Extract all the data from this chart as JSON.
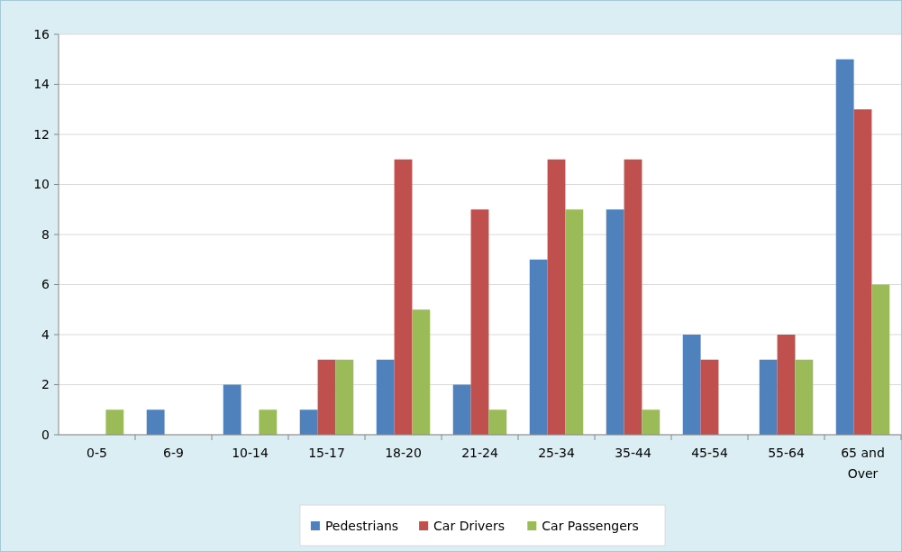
{
  "chart_data": {
    "type": "bar",
    "categories": [
      "0-5",
      "6-9",
      "10-14",
      "15-17",
      "18-20",
      "21-24",
      "25-34",
      "35-44",
      "45-54",
      "55-64",
      "65 and Over"
    ],
    "series": [
      {
        "name": "Pedestrians",
        "color": "#4f81bd",
        "values": [
          0,
          1,
          2,
          1,
          3,
          2,
          7,
          9,
          4,
          3,
          15
        ]
      },
      {
        "name": "Car Drivers",
        "color": "#c0504d",
        "values": [
          0,
          0,
          0,
          3,
          11,
          9,
          11,
          11,
          3,
          4,
          13
        ]
      },
      {
        "name": "Car Passengers",
        "color": "#9bbb59",
        "values": [
          1,
          0,
          1,
          3,
          5,
          1,
          9,
          1,
          0,
          3,
          6
        ]
      }
    ],
    "ylim": [
      0,
      16
    ],
    "yticks": [
      0,
      2,
      4,
      6,
      8,
      10,
      12,
      14,
      16
    ],
    "grid": "y",
    "legend": "bottom"
  }
}
